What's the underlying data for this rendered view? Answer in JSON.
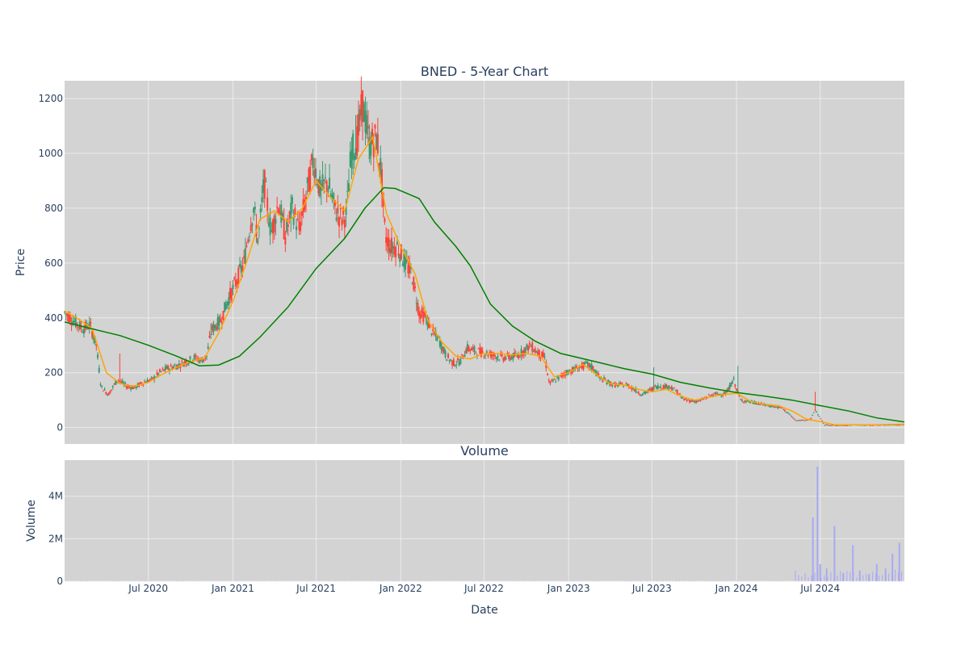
{
  "colors": {
    "plot_bg": "#d3d3d3",
    "grid": "#ebebeb",
    "up": "#3d9970",
    "down": "#ff4136",
    "ma_short": "#ffa500",
    "ma_long": "#008000",
    "volume": "#a9a9f5",
    "text": "#2a3f5f"
  },
  "chart_data": [
    {
      "type": "candlestick",
      "title": "BNED - 5-Year Chart",
      "ylabel": "Price",
      "xlabel": "",
      "ylim": [
        -60,
        1265
      ],
      "xlim": [
        "2020-01-01",
        "2024-12-31"
      ],
      "yticks": [
        0,
        200,
        400,
        600,
        800,
        1000,
        1200
      ],
      "grid": true,
      "price_anchors": [
        [
          "2020-01-01",
          420
        ],
        [
          "2020-01-20",
          390
        ],
        [
          "2020-02-10",
          360
        ],
        [
          "2020-02-25",
          375
        ],
        [
          "2020-03-10",
          300
        ],
        [
          "2020-03-20",
          150
        ],
        [
          "2020-04-05",
          120
        ],
        [
          "2020-04-25",
          175
        ],
        [
          "2020-05-15",
          150
        ],
        [
          "2020-06-01",
          145
        ],
        [
          "2020-06-20",
          165
        ],
        [
          "2020-07-10",
          175
        ],
        [
          "2020-07-25",
          200
        ],
        [
          "2020-08-10",
          215
        ],
        [
          "2020-09-01",
          225
        ],
        [
          "2020-09-20",
          240
        ],
        [
          "2020-10-10",
          255
        ],
        [
          "2020-10-25",
          245
        ],
        [
          "2020-11-05",
          260
        ],
        [
          "2020-11-15",
          355
        ],
        [
          "2020-12-05",
          390
        ],
        [
          "2020-12-20",
          460
        ],
        [
          "2021-01-05",
          520
        ],
        [
          "2021-01-25",
          600
        ],
        [
          "2021-02-05",
          720
        ],
        [
          "2021-02-15",
          800
        ],
        [
          "2021-02-25",
          680
        ],
        [
          "2021-03-10",
          900
        ],
        [
          "2021-03-25",
          710
        ],
        [
          "2021-04-10",
          820
        ],
        [
          "2021-04-25",
          700
        ],
        [
          "2021-05-10",
          800
        ],
        [
          "2021-05-25",
          720
        ],
        [
          "2021-06-10",
          850
        ],
        [
          "2021-06-25",
          980
        ],
        [
          "2021-07-10",
          860
        ],
        [
          "2021-07-25",
          900
        ],
        [
          "2021-08-10",
          800
        ],
        [
          "2021-08-25",
          760
        ],
        [
          "2021-09-05",
          780
        ],
        [
          "2021-09-15",
          1000
        ],
        [
          "2021-09-28",
          1050
        ],
        [
          "2021-10-10",
          1180
        ],
        [
          "2021-10-25",
          1030
        ],
        [
          "2021-11-10",
          1060
        ],
        [
          "2021-11-20",
          920
        ],
        [
          "2021-11-28",
          700
        ],
        [
          "2021-12-10",
          660
        ],
        [
          "2021-12-25",
          660
        ],
        [
          "2022-01-10",
          600
        ],
        [
          "2022-01-25",
          560
        ],
        [
          "2022-02-10",
          420
        ],
        [
          "2022-02-25",
          400
        ],
        [
          "2022-03-10",
          350
        ],
        [
          "2022-03-25",
          320
        ],
        [
          "2022-04-10",
          260
        ],
        [
          "2022-04-25",
          235
        ],
        [
          "2022-05-10",
          240
        ],
        [
          "2022-05-25",
          290
        ],
        [
          "2022-06-10",
          280
        ],
        [
          "2022-07-10",
          270
        ],
        [
          "2022-08-10",
          255
        ],
        [
          "2022-09-10",
          260
        ],
        [
          "2022-10-10",
          300
        ],
        [
          "2022-10-25",
          275
        ],
        [
          "2022-11-10",
          255
        ],
        [
          "2022-11-20",
          160
        ],
        [
          "2022-12-10",
          180
        ],
        [
          "2022-12-25",
          200
        ],
        [
          "2023-01-10",
          210
        ],
        [
          "2023-02-10",
          230
        ],
        [
          "2023-02-25",
          215
        ],
        [
          "2023-03-10",
          180
        ],
        [
          "2023-04-10",
          155
        ],
        [
          "2023-05-10",
          155
        ],
        [
          "2023-06-10",
          120
        ],
        [
          "2023-07-01",
          140
        ],
        [
          "2023-07-10",
          150
        ],
        [
          "2023-08-10",
          150
        ],
        [
          "2023-08-25",
          130
        ],
        [
          "2023-09-10",
          100
        ],
        [
          "2023-10-10",
          95
        ],
        [
          "2023-11-10",
          120
        ],
        [
          "2023-12-10",
          125
        ],
        [
          "2023-12-25",
          175
        ],
        [
          "2024-01-10",
          100
        ],
        [
          "2024-02-10",
          90
        ],
        [
          "2024-03-10",
          80
        ],
        [
          "2024-04-10",
          70
        ],
        [
          "2024-05-10",
          25
        ],
        [
          "2024-06-10",
          30
        ],
        [
          "2024-06-20",
          65
        ],
        [
          "2024-07-10",
          10
        ],
        [
          "2024-08-10",
          8
        ],
        [
          "2024-09-10",
          10
        ],
        [
          "2024-10-10",
          9
        ],
        [
          "2024-11-10",
          10
        ],
        [
          "2024-12-31",
          11
        ]
      ],
      "spikes": [
        [
          "2020-05-01",
          270
        ],
        [
          "2020-11-15",
          380
        ],
        [
          "2021-09-25",
          1140
        ],
        [
          "2023-07-05",
          220
        ],
        [
          "2024-01-03",
          225
        ],
        [
          "2024-06-19",
          130
        ]
      ],
      "series": [
        {
          "type": "line",
          "color": "#ffa500",
          "values": [
            [
              "2020-01-01",
              425
            ],
            [
              "2020-02-01",
              395
            ],
            [
              "2020-03-01",
              360
            ],
            [
              "2020-04-01",
              200
            ],
            [
              "2020-05-01",
              160
            ],
            [
              "2020-06-01",
              150
            ],
            [
              "2020-07-01",
              165
            ],
            [
              "2020-08-01",
              195
            ],
            [
              "2020-09-01",
              220
            ],
            [
              "2020-10-01",
              240
            ],
            [
              "2020-11-01",
              255
            ],
            [
              "2020-12-01",
              345
            ],
            [
              "2021-01-01",
              460
            ],
            [
              "2021-02-01",
              610
            ],
            [
              "2021-03-01",
              760
            ],
            [
              "2021-04-01",
              790
            ],
            [
              "2021-05-01",
              750
            ],
            [
              "2021-06-01",
              800
            ],
            [
              "2021-07-01",
              900
            ],
            [
              "2021-08-01",
              840
            ],
            [
              "2021-09-01",
              790
            ],
            [
              "2021-10-01",
              980
            ],
            [
              "2021-11-01",
              1060
            ],
            [
              "2021-12-01",
              780
            ],
            [
              "2022-01-01",
              660
            ],
            [
              "2022-02-01",
              560
            ],
            [
              "2022-03-01",
              390
            ],
            [
              "2022-04-01",
              310
            ],
            [
              "2022-05-01",
              260
            ],
            [
              "2022-06-01",
              250
            ],
            [
              "2022-07-01",
              270
            ],
            [
              "2022-08-01",
              270
            ],
            [
              "2022-09-01",
              265
            ],
            [
              "2022-10-01",
              270
            ],
            [
              "2022-11-01",
              260
            ],
            [
              "2022-12-01",
              185
            ],
            [
              "2023-01-01",
              200
            ],
            [
              "2023-02-01",
              230
            ],
            [
              "2023-03-01",
              195
            ],
            [
              "2023-04-01",
              160
            ],
            [
              "2023-05-01",
              155
            ],
            [
              "2023-06-01",
              140
            ],
            [
              "2023-07-01",
              130
            ],
            [
              "2023-08-01",
              140
            ],
            [
              "2023-09-01",
              115
            ],
            [
              "2023-10-01",
              100
            ],
            [
              "2023-11-01",
              110
            ],
            [
              "2023-12-01",
              120
            ],
            [
              "2024-01-01",
              125
            ],
            [
              "2024-02-01",
              95
            ],
            [
              "2024-03-01",
              85
            ],
            [
              "2024-04-01",
              80
            ],
            [
              "2024-05-01",
              60
            ],
            [
              "2024-06-01",
              30
            ],
            [
              "2024-07-01",
              22
            ],
            [
              "2024-08-01",
              10
            ],
            [
              "2024-09-01",
              10
            ],
            [
              "2024-10-01",
              10
            ],
            [
              "2024-11-01",
              10
            ],
            [
              "2024-12-31",
              12
            ]
          ]
        },
        {
          "type": "line",
          "color": "#008000",
          "values": [
            [
              "2020-01-01",
              385
            ],
            [
              "2020-03-01",
              360
            ],
            [
              "2020-05-01",
              335
            ],
            [
              "2020-07-01",
              300
            ],
            [
              "2020-09-01",
              260
            ],
            [
              "2020-10-20",
              225
            ],
            [
              "2020-12-01",
              228
            ],
            [
              "2021-01-15",
              260
            ],
            [
              "2021-03-01",
              330
            ],
            [
              "2021-05-01",
              440
            ],
            [
              "2021-07-01",
              580
            ],
            [
              "2021-09-01",
              690
            ],
            [
              "2021-10-15",
              800
            ],
            [
              "2021-11-25",
              875
            ],
            [
              "2021-12-20",
              872
            ],
            [
              "2022-02-10",
              835
            ],
            [
              "2022-03-15",
              750
            ],
            [
              "2022-05-01",
              660
            ],
            [
              "2022-06-01",
              590
            ],
            [
              "2022-07-15",
              450
            ],
            [
              "2022-09-01",
              370
            ],
            [
              "2022-10-20",
              315
            ],
            [
              "2022-12-15",
              270
            ],
            [
              "2023-03-01",
              240
            ],
            [
              "2023-05-01",
              215
            ],
            [
              "2023-07-01",
              195
            ],
            [
              "2023-09-01",
              165
            ],
            [
              "2023-11-01",
              145
            ],
            [
              "2024-01-01",
              128
            ],
            [
              "2024-03-01",
              115
            ],
            [
              "2024-05-01",
              100
            ],
            [
              "2024-07-01",
              80
            ],
            [
              "2024-09-01",
              60
            ],
            [
              "2024-11-01",
              35
            ],
            [
              "2024-12-31",
              20
            ]
          ]
        }
      ]
    },
    {
      "type": "bar",
      "title": "Volume",
      "ylabel": "Volume",
      "xlabel": "Date",
      "ylim": [
        0,
        5700000
      ],
      "yticks": [
        0,
        2000000,
        4000000
      ],
      "ytick_labels": [
        "0",
        "2M",
        "4M"
      ],
      "xticks": [
        "2020-07-01",
        "2021-01-01",
        "2021-07-01",
        "2022-01-01",
        "2022-07-01",
        "2023-01-01",
        "2023-07-01",
        "2024-01-01",
        "2024-07-01"
      ],
      "xtick_labels": [
        "Jul 2020",
        "Jan 2021",
        "Jul 2021",
        "Jan 2022",
        "Jul 2022",
        "Jan 2023",
        "Jul 2023",
        "Jan 2024",
        "Jul 2024"
      ],
      "grid": true,
      "values": [
        [
          "2024-06-15",
          3000000
        ],
        [
          "2024-06-25",
          5400000
        ],
        [
          "2024-07-01",
          800000
        ],
        [
          "2024-07-15",
          600000
        ],
        [
          "2024-08-01",
          2600000
        ],
        [
          "2024-08-20",
          400000
        ],
        [
          "2024-09-10",
          1700000
        ],
        [
          "2024-09-25",
          500000
        ],
        [
          "2024-10-15",
          300000
        ],
        [
          "2024-11-01",
          800000
        ],
        [
          "2024-11-20",
          600000
        ],
        [
          "2024-12-05",
          1300000
        ],
        [
          "2024-12-20",
          1800000
        ]
      ]
    }
  ]
}
